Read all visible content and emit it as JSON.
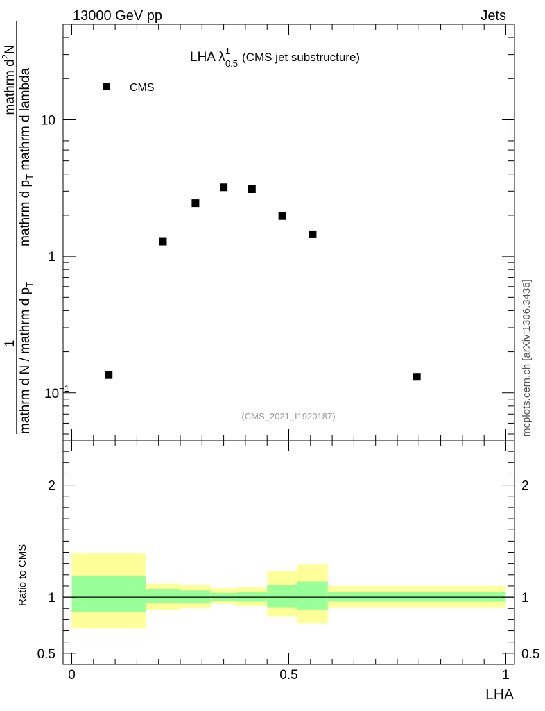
{
  "header": {
    "left": "13000 GeV pp",
    "right": "Jets"
  },
  "side_label": "mcplots.cern.ch [arXiv:1306.3436]",
  "chart_data": {
    "type": "scatter",
    "title_main": "LHA λ",
    "title_sup": "1",
    "title_sub": "0.5",
    "title_note": "(CMS jet substructure)",
    "watermark": "(CMS_2021_I1920187)",
    "legend": {
      "label": "CMS",
      "position": "top-left"
    },
    "ylabel": {
      "numerator_top": "mathrm d",
      "numerator_sup": "2",
      "numerator_rest": "N",
      "denominator": "mathrm d p",
      "denominator_sub": "T",
      "denominator_rest": " mathrm d lambda",
      "prefix_num": "1",
      "prefix_den": "mathrm d N / mathrm d p",
      "prefix_den_sub": "T"
    },
    "xlabel": "LHA",
    "xlim": [
      -0.02,
      1.02
    ],
    "ylim_log": [
      0.045,
      50
    ],
    "y_ticks": [
      {
        "v": 10,
        "label": "10"
      },
      {
        "v": 1,
        "label": "1"
      },
      {
        "v": 0.1,
        "label": "10",
        "sup": "−1"
      }
    ],
    "x_ticks": [
      {
        "v": 0,
        "label": "0"
      },
      {
        "v": 0.5,
        "label": "0.5"
      },
      {
        "v": 1,
        "label": "1"
      }
    ],
    "series": [
      {
        "name": "CMS",
        "points": [
          {
            "x": 0.085,
            "y": 0.135
          },
          {
            "x": 0.21,
            "y": 1.28
          },
          {
            "x": 0.285,
            "y": 2.45
          },
          {
            "x": 0.35,
            "y": 3.2
          },
          {
            "x": 0.415,
            "y": 3.1
          },
          {
            "x": 0.485,
            "y": 1.97
          },
          {
            "x": 0.555,
            "y": 1.45
          },
          {
            "x": 0.795,
            "y": 0.131
          }
        ]
      }
    ],
    "ratio": {
      "ylabel": "Ratio to CMS",
      "ylim": [
        0.4,
        2.4
      ],
      "y_ticks": [
        {
          "v": 2,
          "label": "2"
        },
        {
          "v": 1,
          "label": "1"
        },
        {
          "v": 0.5,
          "label": "0.5"
        }
      ],
      "bands": [
        {
          "x0": 0.0,
          "x1": 0.17,
          "yellow": [
            0.72,
            1.39
          ],
          "green": [
            0.87,
            1.19
          ]
        },
        {
          "x0": 0.17,
          "x1": 0.25,
          "yellow": [
            0.89,
            1.12
          ],
          "green": [
            0.95,
            1.07
          ]
        },
        {
          "x0": 0.25,
          "x1": 0.32,
          "yellow": [
            0.9,
            1.11
          ],
          "green": [
            0.95,
            1.06
          ]
        },
        {
          "x0": 0.32,
          "x1": 0.38,
          "yellow": [
            0.94,
            1.08
          ],
          "green": [
            0.97,
            1.04
          ]
        },
        {
          "x0": 0.38,
          "x1": 0.45,
          "yellow": [
            0.92,
            1.09
          ],
          "green": [
            0.96,
            1.05
          ]
        },
        {
          "x0": 0.45,
          "x1": 0.52,
          "yellow": [
            0.83,
            1.23
          ],
          "green": [
            0.91,
            1.11
          ]
        },
        {
          "x0": 0.52,
          "x1": 0.59,
          "yellow": [
            0.77,
            1.29
          ],
          "green": [
            0.89,
            1.14
          ]
        },
        {
          "x0": 0.59,
          "x1": 1.0,
          "yellow": [
            0.91,
            1.1
          ],
          "green": [
            0.96,
            1.05
          ]
        }
      ]
    }
  }
}
